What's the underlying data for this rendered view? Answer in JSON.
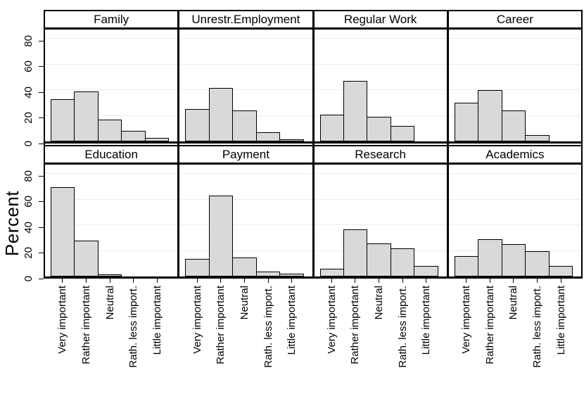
{
  "chart_data": {
    "type": "bar",
    "title": "",
    "ylabel": "Percent",
    "xlabel": "",
    "y_ticks": [
      0,
      20,
      40,
      60,
      80
    ],
    "ylim": [
      0,
      89
    ],
    "grid": "horizontal",
    "legend": "none",
    "layout": {
      "rows": 2,
      "cols": 4
    },
    "categories": [
      "Very important",
      "Rather important",
      "Neutral",
      "Rath. less import.",
      "Little important"
    ],
    "panels": [
      {
        "title": "Family",
        "values": [
          33,
          39,
          17,
          8,
          3
        ]
      },
      {
        "title": "Unrestr.Employment",
        "values": [
          25,
          42,
          24,
          7,
          1
        ]
      },
      {
        "title": "Regular Work",
        "values": [
          21,
          47,
          19,
          12,
          0
        ]
      },
      {
        "title": "Career",
        "values": [
          30,
          40,
          24,
          5,
          0
        ]
      },
      {
        "title": "Education",
        "values": [
          70,
          28,
          1,
          0,
          0
        ]
      },
      {
        "title": "Payment",
        "values": [
          14,
          63,
          15,
          4,
          2
        ]
      },
      {
        "title": "Research",
        "values": [
          6,
          37,
          26,
          22,
          8
        ]
      },
      {
        "title": "Academics",
        "values": [
          16,
          29,
          25,
          20,
          8
        ]
      }
    ],
    "colors": {
      "bar_fill": "#d9d9d9",
      "bar_border": "#000000",
      "gridline": "#ececec",
      "background": "#ffffff",
      "text": "#000000"
    }
  }
}
